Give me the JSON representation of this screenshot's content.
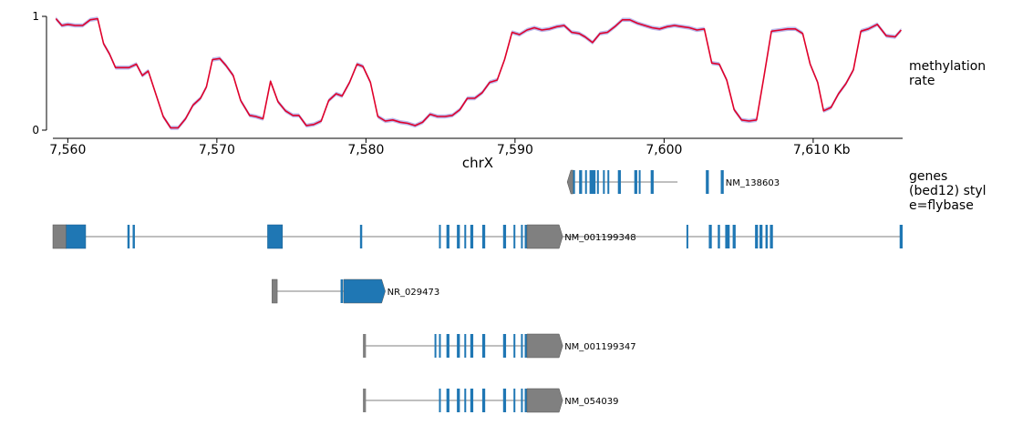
{
  "chart_data": [
    {
      "type": "line",
      "title": "",
      "xlabel": "chrX",
      "ylabel": "methylation rate",
      "ylim": [
        0,
        1
      ],
      "y_ticks": [
        "0",
        "1"
      ],
      "xlim": [
        7559.0,
        7616.0
      ],
      "x_ticks": [
        7560,
        7570,
        7580,
        7590,
        7600,
        7610
      ],
      "x_tick_labels": [
        "7,560",
        "7,570",
        "7,580",
        "7,590",
        "7,600",
        "7,610 Kb"
      ],
      "colors": {
        "line": "#e0002a",
        "band": "#a9a7e6"
      },
      "grid": false,
      "series": [
        {
          "x": [
            7559.2,
            7559.6,
            7560.0,
            7560.5,
            7561.0,
            7561.5,
            7562.0,
            7562.4,
            7562.8,
            7563.2,
            7563.6,
            7564.1,
            7564.6,
            7565.0,
            7565.4,
            7565.9,
            7566.4,
            7566.9,
            7567.4,
            7567.9,
            7568.4,
            7568.9,
            7569.3,
            7569.7,
            7570.2,
            7570.6,
            7571.1,
            7571.6,
            7572.2,
            7572.6,
            7573.1,
            7573.6,
            7574.1,
            7574.6,
            7575.1,
            7575.5,
            7576.0,
            7576.5,
            7577.0,
            7577.5,
            7578.0,
            7578.4,
            7578.9,
            7579.4,
            7579.8,
            7580.3,
            7580.8,
            7581.3,
            7581.8,
            7582.3,
            7582.8,
            7583.3,
            7583.8,
            7584.3,
            7584.8,
            7585.3,
            7585.8,
            7586.3,
            7586.8,
            7587.3,
            7587.8,
            7588.3,
            7588.8,
            7589.3,
            7589.8,
            7590.3,
            7590.8,
            7591.3,
            7591.8,
            7592.3,
            7592.8,
            7593.3,
            7593.8,
            7594.3,
            7594.7,
            7595.2,
            7595.7,
            7596.2,
            7596.7,
            7597.2,
            7597.7,
            7598.2,
            7598.7,
            7599.2,
            7599.7,
            7600.2,
            7600.7,
            7601.2,
            7601.7,
            7602.2,
            7602.7,
            7603.2,
            7603.7,
            7604.2,
            7604.7,
            7605.2,
            7605.7,
            7606.2,
            7606.7,
            7607.2,
            7607.8,
            7608.3,
            7608.8,
            7609.3,
            7609.8,
            7610.3,
            7610.7,
            7611.2,
            7611.7,
            7612.2,
            7612.7,
            7613.2,
            7613.7,
            7614.3,
            7614.9,
            7615.5,
            7615.9
          ],
          "values": [
            0.98,
            0.92,
            0.93,
            0.92,
            0.92,
            0.97,
            0.98,
            0.76,
            0.67,
            0.55,
            0.55,
            0.55,
            0.58,
            0.48,
            0.52,
            0.32,
            0.12,
            0.02,
            0.02,
            0.1,
            0.22,
            0.28,
            0.38,
            0.62,
            0.63,
            0.57,
            0.48,
            0.26,
            0.13,
            0.12,
            0.1,
            0.43,
            0.25,
            0.17,
            0.13,
            0.13,
            0.04,
            0.05,
            0.08,
            0.26,
            0.32,
            0.3,
            0.42,
            0.58,
            0.56,
            0.42,
            0.12,
            0.08,
            0.09,
            0.07,
            0.06,
            0.04,
            0.07,
            0.14,
            0.12,
            0.12,
            0.13,
            0.18,
            0.28,
            0.28,
            0.33,
            0.42,
            0.44,
            0.62,
            0.86,
            0.84,
            0.88,
            0.9,
            0.88,
            0.89,
            0.91,
            0.92,
            0.86,
            0.85,
            0.82,
            0.77,
            0.85,
            0.86,
            0.91,
            0.97,
            0.97,
            0.94,
            0.92,
            0.9,
            0.89,
            0.91,
            0.92,
            0.91,
            0.9,
            0.88,
            0.89,
            0.59,
            0.58,
            0.44,
            0.18,
            0.09,
            0.08,
            0.09,
            0.47,
            0.87,
            0.88,
            0.89,
            0.89,
            0.85,
            0.58,
            0.42,
            0.17,
            0.2,
            0.32,
            0.41,
            0.53,
            0.87,
            0.89,
            0.93,
            0.83,
            0.82,
            0.88
          ]
        }
      ]
    },
    {
      "type": "gene-track",
      "title": "",
      "track_label": "genes\n(bed12) styl\ne=flybase",
      "xlabel": "chrX",
      "xlim": [
        7559.0,
        7616.0
      ],
      "colors": {
        "coding": "#1f77b4",
        "noncoding": "#808080",
        "line": "#555555"
      },
      "genes": [
        {
          "name": "NM_138603",
          "strand": "-",
          "start": 7593.5,
          "end": 7600.9,
          "exons": [
            [
              7593.5,
              7593.9,
              "utr"
            ],
            [
              7593.9,
              7594.0
            ],
            [
              7594.3,
              7594.5
            ],
            [
              7594.7,
              7594.8
            ],
            [
              7595.0,
              7595.4
            ],
            [
              7595.5,
              7595.6
            ],
            [
              7595.9,
              7596.0
            ],
            [
              7596.2,
              7596.3
            ],
            [
              7596.9,
              7597.1
            ],
            [
              7598.0,
              7598.2
            ],
            [
              7598.3,
              7598.4
            ],
            [
              7599.1,
              7599.3
            ],
            [
              7602.8,
              7603.0
            ],
            [
              7603.8,
              7604.0
            ]
          ],
          "label_after": 7604.0
        },
        {
          "name": "NM_001199348",
          "strand": "+",
          "start": 7559.0,
          "end": 7616.0,
          "exons": [
            [
              7559.0,
              7559.9,
              "utr"
            ],
            [
              7559.9,
              7561.2
            ],
            [
              7564.0,
              7564.15
            ],
            [
              7564.35,
              7564.5
            ],
            [
              7573.4,
              7574.4
            ],
            [
              7579.6,
              7579.75
            ],
            [
              7584.9,
              7585.0
            ],
            [
              7585.4,
              7585.6
            ],
            [
              7586.1,
              7586.3
            ],
            [
              7586.6,
              7586.7
            ],
            [
              7587.0,
              7587.2
            ],
            [
              7587.8,
              7588.0
            ],
            [
              7589.2,
              7589.4
            ],
            [
              7589.9,
              7590.0
            ],
            [
              7590.4,
              7590.5
            ],
            [
              7590.65,
              7590.8
            ],
            [
              7590.8,
              7593.2,
              "utr-end"
            ],
            [
              7601.5,
              7601.6
            ],
            [
              7603.0,
              7603.2
            ],
            [
              7603.6,
              7603.75
            ],
            [
              7604.1,
              7604.4
            ],
            [
              7604.6,
              7604.8
            ],
            [
              7606.1,
              7606.3
            ],
            [
              7606.4,
              7606.6
            ],
            [
              7606.8,
              7606.95
            ],
            [
              7607.1,
              7607.3
            ],
            [
              7615.8,
              7616.0
            ]
          ],
          "label_after": 7593.2
        },
        {
          "name": "NR_029473",
          "strand": "+",
          "start": 7573.7,
          "end": 7578.8,
          "exons": [
            [
              7573.7,
              7574.05,
              "utr"
            ],
            [
              7578.3,
              7578.45
            ],
            [
              7578.5,
              7581.3,
              "coding-end"
            ]
          ],
          "label_after": 7581.3
        },
        {
          "name": "NM_001199347",
          "strand": "+",
          "start": 7579.8,
          "end": 7593.2,
          "exons": [
            [
              7579.8,
              7580.0
            ],
            [
              7584.6,
              7584.7
            ],
            [
              7584.9,
              7585.0
            ],
            [
              7585.4,
              7585.6
            ],
            [
              7586.1,
              7586.3
            ],
            [
              7586.6,
              7586.7
            ],
            [
              7587.0,
              7587.2
            ],
            [
              7587.8,
              7588.0
            ],
            [
              7589.2,
              7589.4
            ],
            [
              7589.9,
              7590.0
            ],
            [
              7590.4,
              7590.5
            ],
            [
              7590.65,
              7590.8
            ],
            [
              7590.8,
              7593.2,
              "utr-end"
            ]
          ],
          "label_after": 7593.2
        },
        {
          "name": "NM_054039",
          "strand": "+",
          "start": 7579.8,
          "end": 7593.2,
          "exons": [
            [
              7579.8,
              7580.0
            ],
            [
              7584.9,
              7585.0
            ],
            [
              7585.4,
              7585.6
            ],
            [
              7586.1,
              7586.3
            ],
            [
              7586.6,
              7586.7
            ],
            [
              7587.0,
              7587.2
            ],
            [
              7587.8,
              7588.0
            ],
            [
              7589.2,
              7589.4
            ],
            [
              7589.9,
              7590.0
            ],
            [
              7590.4,
              7590.5
            ],
            [
              7590.65,
              7590.8
            ],
            [
              7590.8,
              7593.2,
              "utr-end"
            ]
          ],
          "label_after": 7593.2
        }
      ]
    }
  ]
}
